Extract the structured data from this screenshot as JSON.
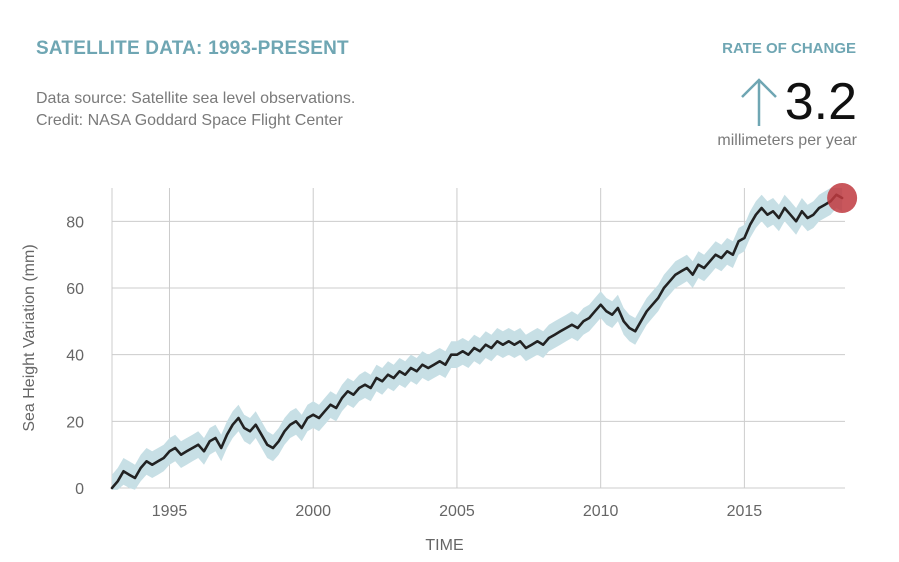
{
  "header": {
    "title": "SATELLITE DATA: 1993-PRESENT",
    "source_line1": "Data source: Satellite sea level observations.",
    "source_line2": "Credit: NASA Goddard Space Flight Center"
  },
  "rate": {
    "label": "RATE OF CHANGE",
    "value": "3.2",
    "unit": "millimeters per year",
    "arrow_icon": "up-arrow-icon"
  },
  "colors": {
    "accent": "#6fa6b3",
    "band": "#c7dfe5",
    "line": "#222222",
    "marker": "#c0393f",
    "grid": "#cccccc"
  },
  "chart_data": {
    "type": "line",
    "xlabel": "TIME",
    "ylabel": "Sea Height Variation (mm)",
    "xlim": [
      1993.0,
      2018.5
    ],
    "ylim": [
      0,
      90
    ],
    "xticks": [
      1995,
      2000,
      2005,
      2010,
      2015
    ],
    "yticks": [
      0,
      20,
      40,
      60,
      80
    ],
    "grid": true,
    "uncertainty_band_mm": 4,
    "series": [
      {
        "x": [
          1993.0,
          1993.2,
          1993.4,
          1993.6,
          1993.8,
          1994.0,
          1994.2,
          1994.4,
          1994.6,
          1994.8,
          1995.0,
          1995.2,
          1995.4,
          1995.6,
          1995.8,
          1996.0,
          1996.2,
          1996.4,
          1996.6,
          1996.8,
          1997.0,
          1997.2,
          1997.4,
          1997.6,
          1997.8,
          1998.0,
          1998.2,
          1998.4,
          1998.6,
          1998.8,
          1999.0,
          1999.2,
          1999.4,
          1999.6,
          1999.8,
          2000.0,
          2000.2,
          2000.4,
          2000.6,
          2000.8,
          2001.0,
          2001.2,
          2001.4,
          2001.6,
          2001.8,
          2002.0,
          2002.2,
          2002.4,
          2002.6,
          2002.8,
          2003.0,
          2003.2,
          2003.4,
          2003.6,
          2003.8,
          2004.0,
          2004.2,
          2004.4,
          2004.6,
          2004.8,
          2005.0,
          2005.2,
          2005.4,
          2005.6,
          2005.8,
          2006.0,
          2006.2,
          2006.4,
          2006.6,
          2006.8,
          2007.0,
          2007.2,
          2007.4,
          2007.6,
          2007.8,
          2008.0,
          2008.2,
          2008.4,
          2008.6,
          2008.8,
          2009.0,
          2009.2,
          2009.4,
          2009.6,
          2009.8,
          2010.0,
          2010.2,
          2010.4,
          2010.6,
          2010.8,
          2011.0,
          2011.2,
          2011.4,
          2011.6,
          2011.8,
          2012.0,
          2012.2,
          2012.4,
          2012.6,
          2012.8,
          2013.0,
          2013.2,
          2013.4,
          2013.6,
          2013.8,
          2014.0,
          2014.2,
          2014.4,
          2014.6,
          2014.8,
          2015.0,
          2015.2,
          2015.4,
          2015.6,
          2015.8,
          2016.0,
          2016.2,
          2016.4,
          2016.6,
          2016.8,
          2017.0,
          2017.2,
          2017.4,
          2017.6,
          2017.8,
          2018.0,
          2018.2,
          2018.4
        ],
        "y": [
          0,
          2,
          5,
          4,
          3,
          6,
          8,
          7,
          8,
          9,
          11,
          12,
          10,
          11,
          12,
          13,
          11,
          14,
          15,
          12,
          16,
          19,
          21,
          18,
          17,
          19,
          16,
          13,
          12,
          14,
          17,
          19,
          20,
          18,
          21,
          22,
          21,
          23,
          25,
          24,
          27,
          29,
          28,
          30,
          31,
          30,
          33,
          32,
          34,
          33,
          35,
          34,
          36,
          35,
          37,
          36,
          37,
          38,
          37,
          40,
          40,
          41,
          40,
          42,
          41,
          43,
          42,
          44,
          43,
          44,
          43,
          44,
          42,
          43,
          44,
          43,
          45,
          46,
          47,
          48,
          49,
          48,
          50,
          51,
          53,
          55,
          53,
          52,
          54,
          50,
          48,
          47,
          50,
          53,
          55,
          57,
          60,
          62,
          64,
          65,
          66,
          64,
          67,
          66,
          68,
          70,
          69,
          71,
          70,
          74,
          75,
          79,
          82,
          84,
          82,
          83,
          81,
          84,
          82,
          80,
          83,
          81,
          82,
          84,
          85,
          86,
          88,
          87
        ]
      }
    ],
    "current_marker": {
      "x": 2018.4,
      "y": 87
    }
  }
}
